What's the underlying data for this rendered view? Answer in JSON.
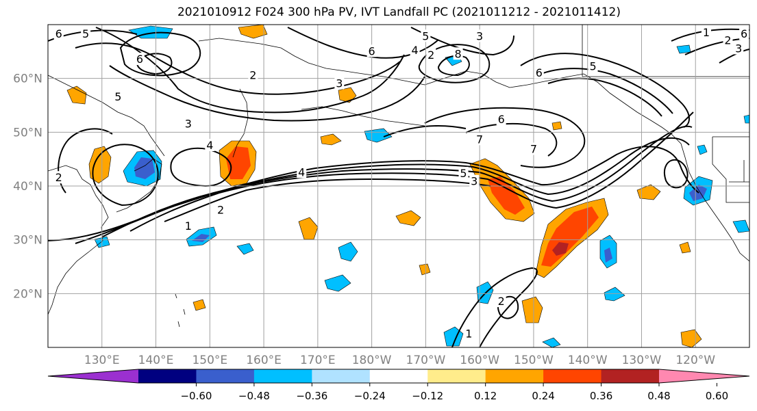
{
  "title": "2021010912 F024 300 hPa PV, IVT Landfall PC (2021011212 - 2021011412)",
  "map": {
    "lon_range": [
      120,
      250
    ],
    "lat_range": [
      10,
      70
    ],
    "lon_ticks": [
      {
        "lon": 130,
        "label": "130°E"
      },
      {
        "lon": 140,
        "label": "140°E"
      },
      {
        "lon": 150,
        "label": "150°E"
      },
      {
        "lon": 160,
        "label": "160°E"
      },
      {
        "lon": 170,
        "label": "170°E"
      },
      {
        "lon": 180,
        "label": "180°W"
      },
      {
        "lon": 190,
        "label": "170°W"
      },
      {
        "lon": 200,
        "label": "160°W"
      },
      {
        "lon": 210,
        "label": "150°W"
      },
      {
        "lon": 220,
        "label": "140°W"
      },
      {
        "lon": 230,
        "label": "130°W"
      },
      {
        "lon": 240,
        "label": "120°W"
      }
    ],
    "lat_ticks": [
      {
        "lat": 20,
        "label": "20°N"
      },
      {
        "lat": 30,
        "label": "30°N"
      },
      {
        "lat": 40,
        "label": "40°N"
      },
      {
        "lat": 50,
        "label": "50°N"
      },
      {
        "lat": 60,
        "label": "60°N"
      }
    ],
    "gridlines": true,
    "contour_labels": [
      {
        "lon": 122,
        "lat": 68.2,
        "text": "6"
      },
      {
        "lon": 127,
        "lat": 68.2,
        "text": "5"
      },
      {
        "lon": 137,
        "lat": 63.5,
        "text": "6"
      },
      {
        "lon": 133,
        "lat": 56.5,
        "text": "5"
      },
      {
        "lon": 146,
        "lat": 51.5,
        "text": "3"
      },
      {
        "lon": 150,
        "lat": 47.5,
        "text": "4"
      },
      {
        "lon": 122,
        "lat": 41.5,
        "text": "2"
      },
      {
        "lon": 158,
        "lat": 60.5,
        "text": "2"
      },
      {
        "lon": 174,
        "lat": 59,
        "text": "3"
      },
      {
        "lon": 167,
        "lat": 42.5,
        "text": "4"
      },
      {
        "lon": 152,
        "lat": 35.5,
        "text": "2"
      },
      {
        "lon": 146,
        "lat": 32.5,
        "text": "1"
      },
      {
        "lon": 180,
        "lat": 65,
        "text": "6"
      },
      {
        "lon": 190,
        "lat": 67.8,
        "text": "5"
      },
      {
        "lon": 200,
        "lat": 67.8,
        "text": "3"
      },
      {
        "lon": 188,
        "lat": 65.2,
        "text": "4"
      },
      {
        "lon": 191,
        "lat": 64.3,
        "text": "2"
      },
      {
        "lon": 196,
        "lat": 64.5,
        "text": "8"
      },
      {
        "lon": 211,
        "lat": 61,
        "text": "6"
      },
      {
        "lon": 221,
        "lat": 62.2,
        "text": "5"
      },
      {
        "lon": 204,
        "lat": 52.3,
        "text": "6"
      },
      {
        "lon": 200,
        "lat": 48.6,
        "text": "7"
      },
      {
        "lon": 210,
        "lat": 46.8,
        "text": "7"
      },
      {
        "lon": 197,
        "lat": 42.3,
        "text": "5"
      },
      {
        "lon": 199,
        "lat": 40.8,
        "text": "3"
      },
      {
        "lon": 242,
        "lat": 68.5,
        "text": "1"
      },
      {
        "lon": 246,
        "lat": 67,
        "text": "2"
      },
      {
        "lon": 248,
        "lat": 65.5,
        "text": "3"
      },
      {
        "lon": 249,
        "lat": 68.2,
        "text": "6"
      },
      {
        "lon": 204,
        "lat": 18.5,
        "text": "2"
      },
      {
        "lon": 198,
        "lat": 12.5,
        "text": "1"
      }
    ]
  },
  "colorbar": {
    "ticks": [
      "−0.60",
      "−0.48",
      "−0.36",
      "−0.24",
      "−0.12",
      "0.12",
      "0.24",
      "0.36",
      "0.48",
      "0.60"
    ],
    "colors": [
      "#9b30d0",
      "#000080",
      "#3a5fcd",
      "#00bfff",
      "#b0e2ff",
      "#ffffff",
      "#ffec8b",
      "#ffa500",
      "#ff4500",
      "#b22222",
      "#ff88b0"
    ]
  }
}
